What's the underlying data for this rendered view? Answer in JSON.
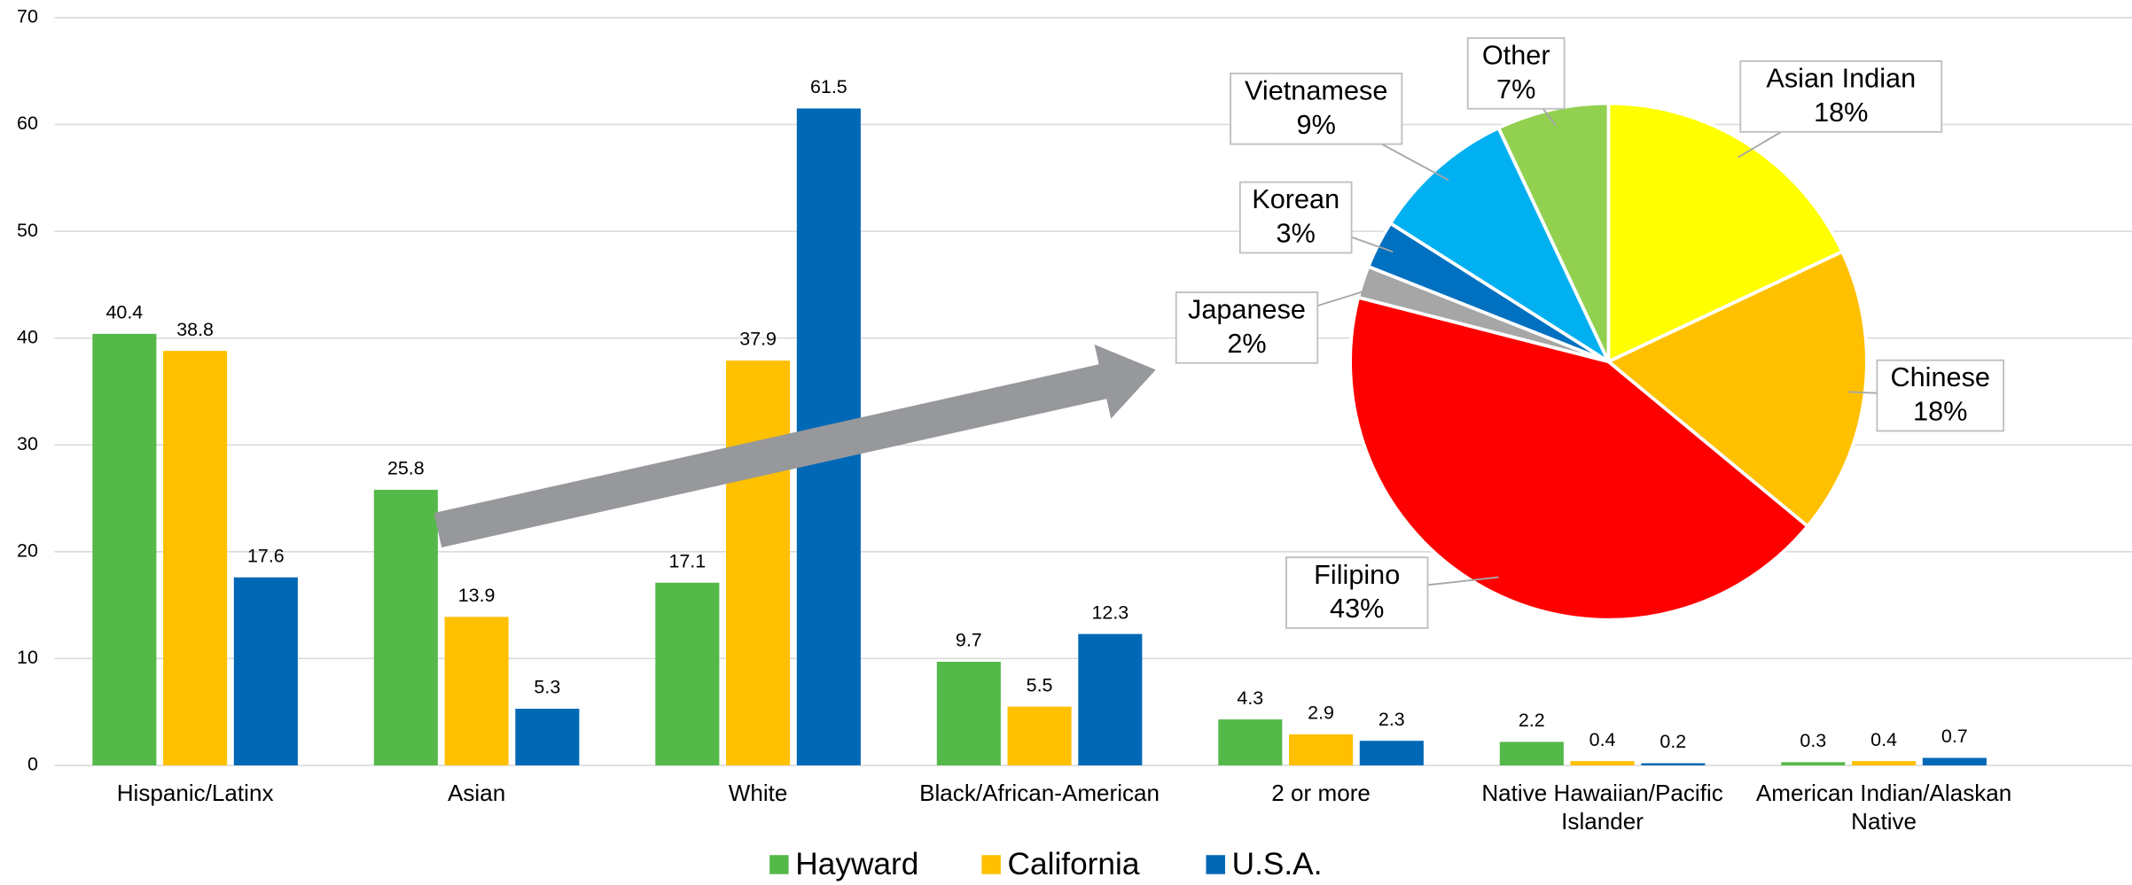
{
  "chart_data": [
    {
      "type": "bar",
      "categories": [
        "Hispanic/Latinx",
        "Asian",
        "White",
        "Black/African-American",
        "2 or more",
        "Native Hawaiian/Pacific Islander",
        "American Indian/Alaskan Native"
      ],
      "series": [
        {
          "name": "Hayward",
          "color": "#54b948",
          "values": [
            40.4,
            25.8,
            17.1,
            9.7,
            4.3,
            2.2,
            0.3
          ]
        },
        {
          "name": "California",
          "color": "#ffc000",
          "values": [
            38.8,
            13.9,
            37.9,
            5.5,
            2.9,
            0.4,
            0.4
          ]
        },
        {
          "name": "U.S.A.",
          "color": "#0068b5",
          "values": [
            17.6,
            5.3,
            61.5,
            12.3,
            2.3,
            0.2,
            0.7
          ]
        }
      ],
      "ylim": [
        0,
        70
      ],
      "yticks": [
        0,
        10,
        20,
        30,
        40,
        50,
        60,
        70
      ],
      "grid": true,
      "legend": "bottom"
    },
    {
      "type": "pie",
      "categories": [
        "Asian Indian",
        "Chinese",
        "Filipino",
        "Japanese",
        "Korean",
        "Vietnamese",
        "Other"
      ],
      "values": [
        18,
        18,
        43,
        2,
        3,
        9,
        7
      ],
      "value_labels": [
        "18%",
        "18%",
        "43%",
        "2%",
        "3%",
        "9%",
        "7%"
      ],
      "colors": [
        "#ffff00",
        "#ffc000",
        "#ff0000",
        "#a6a6a6",
        "#0070c0",
        "#00b0f0",
        "#92d050"
      ]
    }
  ]
}
